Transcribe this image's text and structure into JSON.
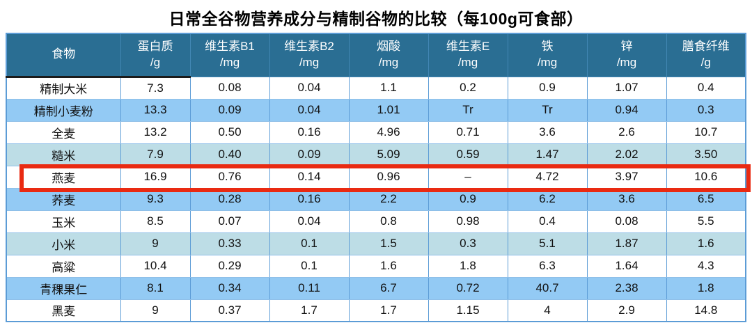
{
  "chart_data": {
    "type": "table",
    "title": "日常全谷物营养成分与精制谷物的比较（每100g可食部）",
    "columns": [
      {
        "label": "食物",
        "unit": ""
      },
      {
        "label": "蛋白质",
        "unit": "/g"
      },
      {
        "label": "维生素B1",
        "unit": "/mg"
      },
      {
        "label": "维生素B2",
        "unit": "/mg"
      },
      {
        "label": "烟酸",
        "unit": "/mg"
      },
      {
        "label": "维生素E",
        "unit": "/mg"
      },
      {
        "label": "铁",
        "unit": "/mg"
      },
      {
        "label": "锌",
        "unit": "/mg"
      },
      {
        "label": "膳食纤维",
        "unit": "/g"
      }
    ],
    "rows": [
      {
        "food": "精制大米",
        "values": [
          "7.3",
          "0.08",
          "0.04",
          "1.1",
          "0.2",
          "0.9",
          "1.07",
          "0.4"
        ],
        "band": "white",
        "highlighted": false
      },
      {
        "food": "精制小麦粉",
        "values": [
          "13.3",
          "0.09",
          "0.04",
          "1.01",
          "Tr",
          "Tr",
          "0.94",
          "0.3"
        ],
        "band": "blue",
        "highlighted": false
      },
      {
        "food": "全麦",
        "values": [
          "13.2",
          "0.50",
          "0.16",
          "4.96",
          "0.71",
          "3.6",
          "2.6",
          "10.7"
        ],
        "band": "white",
        "highlighted": false
      },
      {
        "food": "糙米",
        "values": [
          "7.9",
          "0.40",
          "0.09",
          "5.09",
          "0.59",
          "1.47",
          "2.02",
          "3.50"
        ],
        "band": "teal",
        "highlighted": false
      },
      {
        "food": "燕麦",
        "values": [
          "16.9",
          "0.76",
          "0.14",
          "0.96",
          "–",
          "4.72",
          "3.97",
          "10.6"
        ],
        "band": "white",
        "highlighted": true
      },
      {
        "food": "荞麦",
        "values": [
          "9.3",
          "0.28",
          "0.16",
          "2.2",
          "0.9",
          "6.2",
          "3.6",
          "6.5"
        ],
        "band": "blue",
        "highlighted": false
      },
      {
        "food": "玉米",
        "values": [
          "8.5",
          "0.07",
          "0.04",
          "0.8",
          "0.98",
          "0.4",
          "0.08",
          "5.5"
        ],
        "band": "white",
        "highlighted": false
      },
      {
        "food": "小米",
        "values": [
          "9",
          "0.33",
          "0.1",
          "1.5",
          "0.3",
          "5.1",
          "1.87",
          "1.6"
        ],
        "band": "teal",
        "highlighted": false
      },
      {
        "food": "高粱",
        "values": [
          "10.4",
          "0.29",
          "0.1",
          "1.6",
          "1.8",
          "6.3",
          "1.64",
          "4.3"
        ],
        "band": "white",
        "highlighted": false
      },
      {
        "food": "青稞果仁",
        "values": [
          "8.1",
          "0.34",
          "0.11",
          "6.7",
          "0.72",
          "40.7",
          "2.38",
          "1.8"
        ],
        "band": "blue",
        "highlighted": false
      },
      {
        "food": "黑麦",
        "values": [
          "9",
          "0.37",
          "1.7",
          "1.7",
          "1.15",
          "4",
          "2.9",
          "14.8"
        ],
        "band": "white",
        "highlighted": false
      }
    ],
    "highlighted_row": "燕麦"
  },
  "colors": {
    "header_bg": "#2A6E93",
    "header_divider": "#4287B4",
    "header_text": "#FFFFFF",
    "band_blue": "#93CAF4",
    "band_teal": "#BDDDE6",
    "band_white": "#FFFFFF",
    "grid": "#5C9CD6",
    "grid_light": "#8FBFE8",
    "highlight": "#E92A12",
    "text": "#111111"
  }
}
